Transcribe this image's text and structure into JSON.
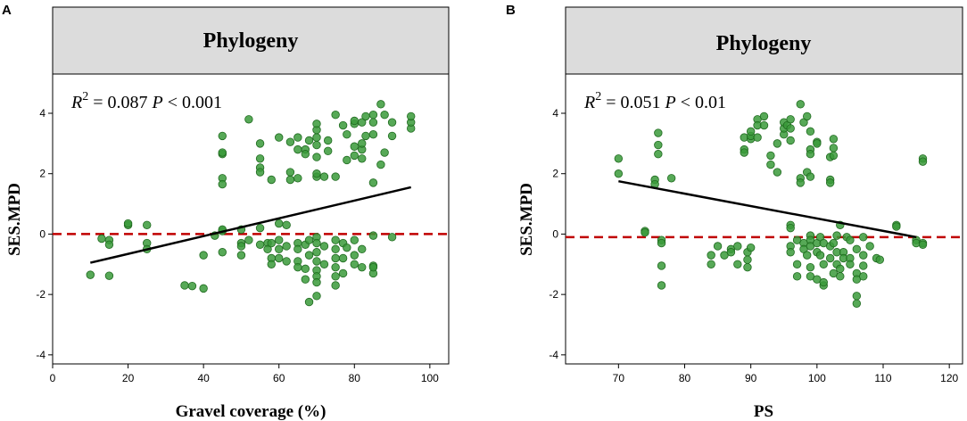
{
  "chart_data": [
    {
      "type": "scatter",
      "panel": "A",
      "title": "Phylogeny",
      "xlabel": "Gravel coverage (%)",
      "ylabel": "SES.MPD",
      "xlim": [
        0,
        105
      ],
      "ylim": [
        -4.3,
        5.3
      ],
      "xticks": [
        0,
        20,
        40,
        60,
        80,
        100
      ],
      "yticks": [
        -4,
        -2,
        0,
        2,
        4
      ],
      "annotation": {
        "r2_label": "R",
        "r2_exp": "2",
        "r2_value": " = 0.087 ",
        "p_symbol": "P",
        "p_value": " < 0.001"
      },
      "reference_line_y": 0,
      "fit_line": {
        "x": [
          10,
          95
        ],
        "y": [
          -0.95,
          1.55
        ]
      },
      "points": [
        [
          10,
          -1.35
        ],
        [
          13,
          -0.15
        ],
        [
          15,
          -0.2
        ],
        [
          15,
          -0.35
        ],
        [
          15,
          -1.38
        ],
        [
          20,
          0.3
        ],
        [
          20,
          0.35
        ],
        [
          25,
          0.3
        ],
        [
          25,
          -0.3
        ],
        [
          25,
          -0.5
        ],
        [
          35,
          -1.7
        ],
        [
          37,
          -1.72
        ],
        [
          40,
          -1.8
        ],
        [
          40,
          -0.7
        ],
        [
          43,
          -0.05
        ],
        [
          45,
          0.1
        ],
        [
          45,
          0.15
        ],
        [
          45,
          -0.6
        ],
        [
          45,
          1.85
        ],
        [
          45,
          1.65
        ],
        [
          45,
          2.65
        ],
        [
          45,
          2.7
        ],
        [
          45,
          3.25
        ],
        [
          50,
          -0.3
        ],
        [
          50,
          -0.7
        ],
        [
          50,
          0.15
        ],
        [
          50,
          -0.4
        ],
        [
          52,
          3.8
        ],
        [
          52,
          -0.2
        ],
        [
          55,
          -0.35
        ],
        [
          55,
          0.2
        ],
        [
          55,
          2.5
        ],
        [
          55,
          2.2
        ],
        [
          55,
          2.05
        ],
        [
          55,
          3.0
        ],
        [
          57,
          -0.3
        ],
        [
          57,
          -0.5
        ],
        [
          58,
          1.8
        ],
        [
          58,
          -0.8
        ],
        [
          58,
          -1.0
        ],
        [
          58,
          -0.3
        ],
        [
          60,
          3.2
        ],
        [
          60,
          0.35
        ],
        [
          60,
          -0.2
        ],
        [
          60,
          -0.5
        ],
        [
          60,
          -0.8
        ],
        [
          62,
          0.3
        ],
        [
          62,
          -0.4
        ],
        [
          62,
          -0.9
        ],
        [
          63,
          1.8
        ],
        [
          63,
          2.05
        ],
        [
          63,
          3.05
        ],
        [
          65,
          -0.3
        ],
        [
          65,
          -0.5
        ],
        [
          65,
          -0.9
        ],
        [
          65,
          -1.1
        ],
        [
          65,
          1.85
        ],
        [
          65,
          3.2
        ],
        [
          65,
          2.8
        ],
        [
          67,
          -0.35
        ],
        [
          67,
          -1.15
        ],
        [
          67,
          -1.5
        ],
        [
          67,
          2.8
        ],
        [
          67,
          2.65
        ],
        [
          68,
          -2.25
        ],
        [
          68,
          -0.2
        ],
        [
          68,
          -0.7
        ],
        [
          68,
          3.1
        ],
        [
          70,
          -0.1
        ],
        [
          70,
          -0.3
        ],
        [
          70,
          -0.6
        ],
        [
          70,
          -0.9
        ],
        [
          70,
          -1.2
        ],
        [
          70,
          -1.4
        ],
        [
          70,
          -1.6
        ],
        [
          70,
          -2.05
        ],
        [
          70,
          1.9
        ],
        [
          70,
          2.0
        ],
        [
          70,
          2.55
        ],
        [
          70,
          2.95
        ],
        [
          70,
          3.2
        ],
        [
          70,
          3.45
        ],
        [
          70,
          3.65
        ],
        [
          72,
          -0.4
        ],
        [
          72,
          -1.0
        ],
        [
          72,
          1.9
        ],
        [
          73,
          2.75
        ],
        [
          73,
          3.1
        ],
        [
          75,
          -0.2
        ],
        [
          75,
          -0.5
        ],
        [
          75,
          -0.8
        ],
        [
          75,
          -1.1
        ],
        [
          75,
          -1.4
        ],
        [
          75,
          -1.7
        ],
        [
          75,
          1.9
        ],
        [
          75,
          3.95
        ],
        [
          77,
          -0.3
        ],
        [
          77,
          -0.8
        ],
        [
          77,
          -1.3
        ],
        [
          77,
          3.6
        ],
        [
          78,
          -0.45
        ],
        [
          78,
          2.45
        ],
        [
          78,
          3.3
        ],
        [
          80,
          -0.2
        ],
        [
          80,
          -0.7
        ],
        [
          80,
          -1.0
        ],
        [
          80,
          2.6
        ],
        [
          80,
          2.9
        ],
        [
          80,
          3.65
        ],
        [
          80,
          3.75
        ],
        [
          82,
          -0.5
        ],
        [
          82,
          -1.1
        ],
        [
          82,
          2.5
        ],
        [
          82,
          2.8
        ],
        [
          82,
          3.0
        ],
        [
          82,
          3.7
        ],
        [
          83,
          3.9
        ],
        [
          83,
          3.25
        ],
        [
          85,
          -0.05
        ],
        [
          85,
          -1.05
        ],
        [
          85,
          -1.3
        ],
        [
          85,
          -1.1
        ],
        [
          85,
          1.7
        ],
        [
          85,
          3.95
        ],
        [
          85,
          3.7
        ],
        [
          85,
          3.3
        ],
        [
          87,
          2.3
        ],
        [
          87,
          4.3
        ],
        [
          88,
          2.7
        ],
        [
          88,
          3.95
        ],
        [
          90,
          -0.1
        ],
        [
          90,
          3.25
        ],
        [
          90,
          3.7
        ],
        [
          95,
          3.5
        ],
        [
          95,
          3.7
        ],
        [
          95,
          3.9
        ]
      ]
    },
    {
      "type": "scatter",
      "panel": "B",
      "title": "Phylogeny",
      "xlabel": "PS",
      "ylabel": "SES.MPD",
      "xlim": [
        62,
        122
      ],
      "ylim": [
        -4.3,
        5.3
      ],
      "xticks": [
        70,
        80,
        90,
        100,
        110,
        120
      ],
      "yticks": [
        -4,
        -2,
        0,
        2,
        4
      ],
      "annotation": {
        "r2_label": "R",
        "r2_exp": "2",
        "r2_value": " = 0.051 ",
        "p_symbol": "P",
        "p_value": " < 0.01"
      },
      "reference_line_y": -0.1,
      "fit_line": {
        "x": [
          70,
          115
        ],
        "y": [
          1.75,
          -0.1
        ]
      },
      "points": [
        [
          70,
          2.5
        ],
        [
          70,
          2.0
        ],
        [
          74,
          0.1
        ],
        [
          74,
          0.05
        ],
        [
          75.5,
          1.8
        ],
        [
          75.5,
          1.65
        ],
        [
          76,
          2.65
        ],
        [
          76,
          2.95
        ],
        [
          76,
          3.35
        ],
        [
          76.5,
          -0.2
        ],
        [
          76.5,
          -0.3
        ],
        [
          76.5,
          -1.05
        ],
        [
          76.5,
          -1.7
        ],
        [
          78,
          1.85
        ],
        [
          84,
          -0.7
        ],
        [
          84,
          -1.0
        ],
        [
          85,
          -0.4
        ],
        [
          86,
          -0.7
        ],
        [
          87,
          -0.5
        ],
        [
          87,
          -0.6
        ],
        [
          88,
          -1.0
        ],
        [
          88,
          -0.4
        ],
        [
          89,
          3.2
        ],
        [
          89,
          2.8
        ],
        [
          89,
          2.7
        ],
        [
          89.5,
          -0.6
        ],
        [
          89.5,
          -0.85
        ],
        [
          89.5,
          -1.1
        ],
        [
          90,
          3.15
        ],
        [
          90,
          3.25
        ],
        [
          90,
          3.4
        ],
        [
          90,
          -0.45
        ],
        [
          91,
          3.8
        ],
        [
          91,
          3.6
        ],
        [
          91,
          3.2
        ],
        [
          92,
          3.9
        ],
        [
          92,
          3.6
        ],
        [
          93,
          2.3
        ],
        [
          93,
          2.6
        ],
        [
          94,
          2.05
        ],
        [
          94,
          3.0
        ],
        [
          95,
          3.3
        ],
        [
          95,
          3.5
        ],
        [
          95,
          3.7
        ],
        [
          95.5,
          3.6
        ],
        [
          96,
          3.8
        ],
        [
          96,
          3.5
        ],
        [
          96,
          3.1
        ],
        [
          96,
          0.3
        ],
        [
          96,
          0.2
        ],
        [
          96,
          -0.4
        ],
        [
          96,
          -0.6
        ],
        [
          97,
          -0.2
        ],
        [
          97,
          -1.0
        ],
        [
          97,
          -1.4
        ],
        [
          97.5,
          1.85
        ],
        [
          97.5,
          1.7
        ],
        [
          97.5,
          4.3
        ],
        [
          98,
          3.7
        ],
        [
          98,
          -0.3
        ],
        [
          98,
          -0.5
        ],
        [
          98.5,
          3.9
        ],
        [
          98.5,
          2.05
        ],
        [
          98.5,
          -0.7
        ],
        [
          99,
          3.4
        ],
        [
          99,
          2.8
        ],
        [
          99,
          2.65
        ],
        [
          99,
          1.9
        ],
        [
          99,
          -0.05
        ],
        [
          99,
          -0.2
        ],
        [
          99,
          -0.4
        ],
        [
          99,
          -1.1
        ],
        [
          99,
          -1.4
        ],
        [
          100,
          3.05
        ],
        [
          100,
          3.0
        ],
        [
          100,
          -0.3
        ],
        [
          100,
          -0.6
        ],
        [
          100,
          -1.5
        ],
        [
          100.5,
          -0.1
        ],
        [
          100.5,
          -0.7
        ],
        [
          101,
          -0.3
        ],
        [
          101,
          -1.0
        ],
        [
          101,
          -1.7
        ],
        [
          101,
          -1.6
        ],
        [
          102,
          2.55
        ],
        [
          102,
          1.8
        ],
        [
          102,
          1.7
        ],
        [
          102,
          -0.4
        ],
        [
          102,
          -0.8
        ],
        [
          102.5,
          2.6
        ],
        [
          102.5,
          2.85
        ],
        [
          102.5,
          3.15
        ],
        [
          102.5,
          -0.3
        ],
        [
          102.5,
          -1.3
        ],
        [
          103,
          -0.05
        ],
        [
          103,
          -0.6
        ],
        [
          103,
          -1.0
        ],
        [
          103.5,
          0.3
        ],
        [
          103.5,
          -1.15
        ],
        [
          103.5,
          -1.4
        ],
        [
          104,
          -0.6
        ],
        [
          104,
          -0.8
        ],
        [
          104.5,
          -0.1
        ],
        [
          105,
          -0.2
        ],
        [
          105,
          -0.8
        ],
        [
          105,
          -1.0
        ],
        [
          106,
          -0.5
        ],
        [
          106,
          -1.3
        ],
        [
          106,
          -1.5
        ],
        [
          106,
          -2.05
        ],
        [
          106,
          -2.3
        ],
        [
          107,
          -1.05
        ],
        [
          107,
          -1.4
        ],
        [
          107,
          -0.1
        ],
        [
          107,
          -0.7
        ],
        [
          108,
          -0.4
        ],
        [
          109,
          -0.8
        ],
        [
          109.5,
          -0.85
        ],
        [
          112,
          0.3
        ],
        [
          112,
          0.25
        ],
        [
          115,
          -0.2
        ],
        [
          115,
          -0.3
        ],
        [
          116,
          -0.3
        ],
        [
          116,
          -0.35
        ],
        [
          116,
          2.5
        ],
        [
          116,
          2.4
        ]
      ]
    }
  ],
  "colors": {
    "point_fill": "#3a9a3a",
    "point_stroke": "#1f6a1f",
    "fit_line": "#000000",
    "ref_line": "#c00000",
    "strip_fill": "#dcdcdc"
  }
}
